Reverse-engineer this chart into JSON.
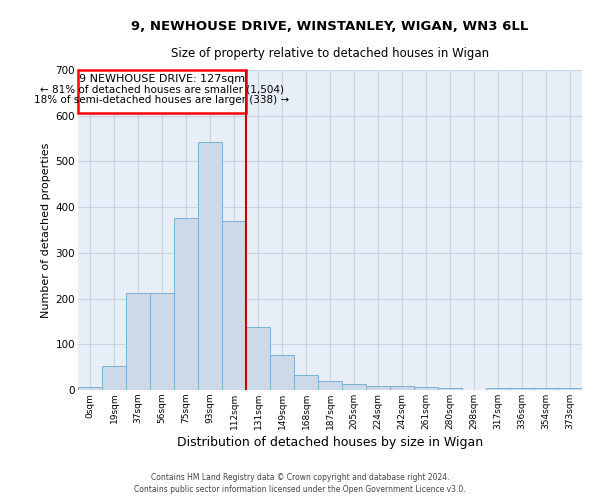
{
  "title_line1": "9, NEWHOUSE DRIVE, WINSTANLEY, WIGAN, WN3 6LL",
  "title_line2": "Size of property relative to detached houses in Wigan",
  "xlabel": "Distribution of detached houses by size in Wigan",
  "ylabel": "Number of detached properties",
  "categories": [
    "0sqm",
    "19sqm",
    "37sqm",
    "56sqm",
    "75sqm",
    "93sqm",
    "112sqm",
    "131sqm",
    "149sqm",
    "168sqm",
    "187sqm",
    "205sqm",
    "224sqm",
    "242sqm",
    "261sqm",
    "280sqm",
    "298sqm",
    "317sqm",
    "336sqm",
    "354sqm",
    "373sqm"
  ],
  "values": [
    7,
    53,
    212,
    212,
    377,
    543,
    369,
    138,
    76,
    32,
    19,
    14,
    9,
    9,
    6,
    4,
    0,
    5,
    4,
    4,
    4
  ],
  "bar_color": "#ccd9e8",
  "bar_edge_color": "#7aafd4",
  "grid_color": "#c8d4e4",
  "plot_bg_color": "#e8eef6",
  "fig_bg_color": "#ffffff",
  "property_label": "9 NEWHOUSE DRIVE: 127sqm",
  "annotation_line1": "← 81% of detached houses are smaller (1,504)",
  "annotation_line2": "18% of semi-detached houses are larger (338) →",
  "vline_color": "#cc0000",
  "vline_x": 7.0,
  "ylim": [
    0,
    700
  ],
  "yticks": [
    0,
    100,
    200,
    300,
    400,
    500,
    600,
    700
  ],
  "footer_line1": "Contains HM Land Registry data © Crown copyright and database right 2024.",
  "footer_line2": "Contains public sector information licensed under the Open Government Licence v3.0."
}
